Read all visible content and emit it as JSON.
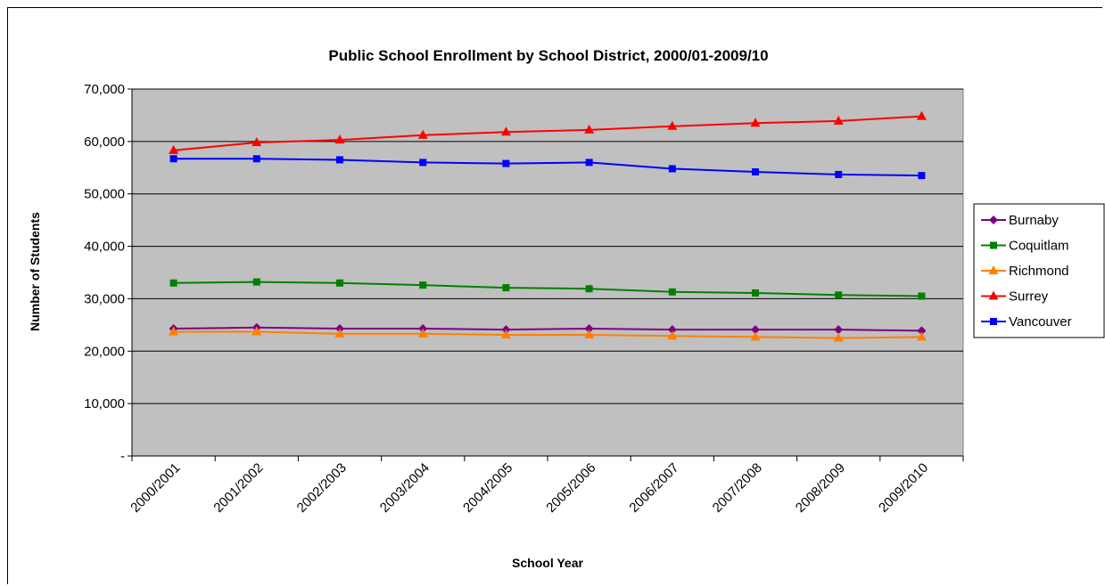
{
  "chart_data": {
    "type": "line",
    "title": "Public School Enrollment by School District, 2000/01-2009/10",
    "xlabel": "School Year",
    "ylabel": "Number of Students",
    "categories": [
      "2000/2001",
      "2001/2002",
      "2002/2003",
      "2003/2004",
      "2004/2005",
      "2005/2006",
      "2006/2007",
      "2007/2008",
      "2008/2009",
      "2009/2010"
    ],
    "ylim": [
      0,
      70000
    ],
    "yticks": [
      {
        "value": 0,
        "label": "-"
      },
      {
        "value": 10000,
        "label": "10,000"
      },
      {
        "value": 20000,
        "label": "20,000"
      },
      {
        "value": 30000,
        "label": "30,000"
      },
      {
        "value": 40000,
        "label": "40,000"
      },
      {
        "value": 50000,
        "label": "50,000"
      },
      {
        "value": 60000,
        "label": "60,000"
      },
      {
        "value": 70000,
        "label": "70,000"
      }
    ],
    "grid": true,
    "legend_position": "right",
    "series": [
      {
        "name": "Burnaby",
        "color": "#800080",
        "marker": "diamond",
        "values": [
          24300,
          24500,
          24300,
          24300,
          24100,
          24300,
          24100,
          24100,
          24100,
          23900
        ]
      },
      {
        "name": "Coquitlam",
        "color": "#008000",
        "marker": "square",
        "values": [
          33000,
          33200,
          33000,
          32600,
          32100,
          31900,
          31300,
          31100,
          30700,
          30500
        ]
      },
      {
        "name": "Richmond",
        "color": "#ff8000",
        "marker": "triangle",
        "values": [
          23700,
          23700,
          23300,
          23300,
          23100,
          23100,
          22900,
          22700,
          22500,
          22700
        ]
      },
      {
        "name": "Surrey",
        "color": "#ff0000",
        "marker": "triangle",
        "values": [
          58300,
          59800,
          60300,
          61200,
          61800,
          62200,
          62900,
          63500,
          63900,
          64800
        ]
      },
      {
        "name": "Vancouver",
        "color": "#0000ff",
        "marker": "square",
        "values": [
          56700,
          56700,
          56500,
          56000,
          55800,
          56000,
          54800,
          54200,
          53700,
          53500
        ]
      }
    ],
    "colors": {
      "plot_background": "#c0c0c0",
      "gridline": "#000000"
    }
  }
}
